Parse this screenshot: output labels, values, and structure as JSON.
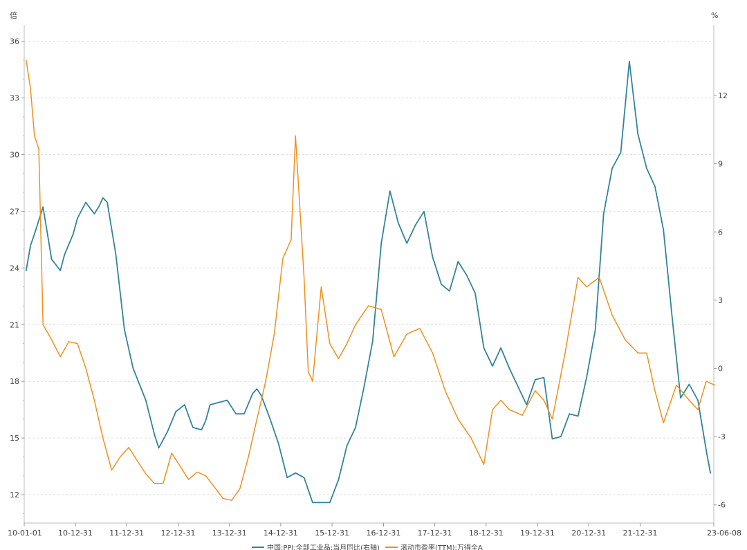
{
  "chart_data": {
    "type": "line",
    "left_unit": "倍",
    "right_unit": "%",
    "y_left": {
      "lim": [
        10.5,
        36.5
      ],
      "ticks": [
        "12",
        "15",
        "18",
        "21",
        "24",
        "27",
        "30",
        "33",
        "36"
      ]
    },
    "y_right": {
      "lim": [
        -6.8,
        14.8
      ],
      "ticks": [
        "-6",
        "-3",
        "0",
        "3",
        "6",
        "9",
        "12"
      ]
    },
    "x_ticks": [
      "10-01-01",
      "10-12-31",
      "11-12-31",
      "12-12-31",
      "13-12-31",
      "14-12-31",
      "15-12-31",
      "16-12-31",
      "17-12-31",
      "18-12-31",
      "19-12-31",
      "20-12-31",
      "21-12-31",
      "23-06-08"
    ],
    "grid": "horizontal dashed",
    "legend_position": "bottom",
    "series": [
      {
        "name": "中国:PPI:全部工业品:当月同比(右轴)",
        "axis": "right",
        "color": "#31849B",
        "x": [
          "2010-01",
          "2010-02",
          "2010-03",
          "2010-05",
          "2010-07",
          "2010-09",
          "2010-10",
          "2010-12",
          "2011-01",
          "2011-03",
          "2011-05",
          "2011-06",
          "2011-07",
          "2011-08",
          "2011-10",
          "2011-12",
          "2012-02",
          "2012-05",
          "2012-07",
          "2012-08",
          "2012-10",
          "2012-12",
          "2013-02",
          "2013-04",
          "2013-06",
          "2013-07",
          "2013-08",
          "2013-10",
          "2013-12",
          "2014-02",
          "2014-04",
          "2014-06",
          "2014-07",
          "2014-08",
          "2014-10",
          "2014-12",
          "2015-02",
          "2015-04",
          "2015-06",
          "2015-08",
          "2015-10",
          "2015-12",
          "2016-02",
          "2016-04",
          "2016-06",
          "2016-08",
          "2016-10",
          "2016-12",
          "2017-02",
          "2017-04",
          "2017-06",
          "2017-08",
          "2017-10",
          "2017-12",
          "2018-02",
          "2018-04",
          "2018-06",
          "2018-08",
          "2018-10",
          "2018-12",
          "2019-02",
          "2019-04",
          "2019-06",
          "2019-08",
          "2019-10",
          "2019-12",
          "2020-02",
          "2020-04",
          "2020-06",
          "2020-08",
          "2020-10",
          "2020-12",
          "2021-02",
          "2021-04",
          "2021-06",
          "2021-08",
          "2021-10",
          "2021-12",
          "2022-02",
          "2022-04",
          "2022-06",
          "2022-08",
          "2022-10",
          "2022-12",
          "2023-02",
          "2023-04",
          "2023-05"
        ],
        "values": [
          4.3,
          5.4,
          5.9,
          7.1,
          4.8,
          4.3,
          5.0,
          5.9,
          6.6,
          7.3,
          6.8,
          7.1,
          7.5,
          7.3,
          5.0,
          1.7,
          0.0,
          -1.4,
          -2.9,
          -3.5,
          -2.8,
          -1.9,
          -1.6,
          -2.6,
          -2.7,
          -2.3,
          -1.6,
          -1.5,
          -1.4,
          -2.0,
          -2.0,
          -1.1,
          -0.9,
          -1.2,
          -2.2,
          -3.3,
          -4.8,
          -4.6,
          -4.8,
          -5.9,
          -5.9,
          -5.9,
          -4.9,
          -3.4,
          -2.6,
          -0.8,
          1.2,
          5.5,
          7.8,
          6.4,
          5.5,
          6.3,
          6.9,
          4.9,
          3.7,
          3.4,
          4.7,
          4.1,
          3.3,
          0.9,
          0.1,
          0.9,
          0.0,
          -0.8,
          -1.6,
          -0.5,
          -0.4,
          -3.1,
          -3.0,
          -2.0,
          -2.1,
          -0.4,
          1.7,
          6.8,
          8.8,
          9.5,
          13.5,
          10.3,
          8.8,
          8.0,
          6.1,
          2.3,
          -1.3,
          -0.7,
          -1.4,
          -3.6,
          -4.6
        ]
      },
      {
        "name": "滚动市盈率(TTM):万得全A",
        "axis": "left",
        "color": "#F0901E",
        "x": [
          "2010-01",
          "2010-02",
          "2010-03",
          "2010-04",
          "2010-05",
          "2010-07",
          "2010-09",
          "2010-11",
          "2011-01",
          "2011-03",
          "2011-05",
          "2011-07",
          "2011-09",
          "2011-11",
          "2012-01",
          "2012-03",
          "2012-05",
          "2012-07",
          "2012-09",
          "2012-11",
          "2013-01",
          "2013-03",
          "2013-05",
          "2013-07",
          "2013-09",
          "2013-11",
          "2014-01",
          "2014-03",
          "2014-05",
          "2014-07",
          "2014-09",
          "2014-11",
          "2015-01",
          "2015-03",
          "2015-04",
          "2015-06",
          "2015-07",
          "2015-08",
          "2015-10",
          "2015-12",
          "2016-02",
          "2016-04",
          "2016-06",
          "2016-09",
          "2016-12",
          "2017-03",
          "2017-06",
          "2017-09",
          "2017-12",
          "2018-03",
          "2018-06",
          "2018-09",
          "2018-12",
          "2019-02",
          "2019-04",
          "2019-06",
          "2019-09",
          "2019-12",
          "2020-02",
          "2020-04",
          "2020-07",
          "2020-10",
          "2020-12",
          "2021-03",
          "2021-06",
          "2021-09",
          "2021-12",
          "2022-02",
          "2022-04",
          "2022-06",
          "2022-09",
          "2022-12",
          "2023-02",
          "2023-04",
          "2023-06"
        ],
        "values": [
          35.0,
          33.5,
          31.0,
          30.3,
          21.0,
          20.2,
          19.3,
          20.1,
          20.0,
          18.7,
          17.0,
          15.0,
          13.3,
          14.0,
          14.5,
          13.8,
          13.1,
          12.6,
          12.6,
          14.2,
          13.5,
          12.8,
          13.2,
          13.0,
          12.4,
          11.8,
          11.7,
          12.3,
          14.0,
          16.0,
          18.0,
          20.5,
          24.5,
          25.5,
          31.0,
          23.5,
          18.5,
          18.0,
          23.0,
          20.0,
          19.2,
          20.0,
          21.0,
          22.0,
          21.8,
          19.3,
          20.5,
          20.8,
          19.5,
          17.5,
          16.0,
          15.0,
          13.6,
          16.5,
          17.0,
          16.5,
          16.2,
          17.5,
          17.0,
          16.0,
          19.5,
          23.5,
          23.0,
          23.5,
          21.5,
          20.2,
          19.5,
          19.5,
          17.5,
          15.8,
          17.8,
          17.0,
          16.5,
          18.0,
          17.8
        ]
      }
    ]
  }
}
